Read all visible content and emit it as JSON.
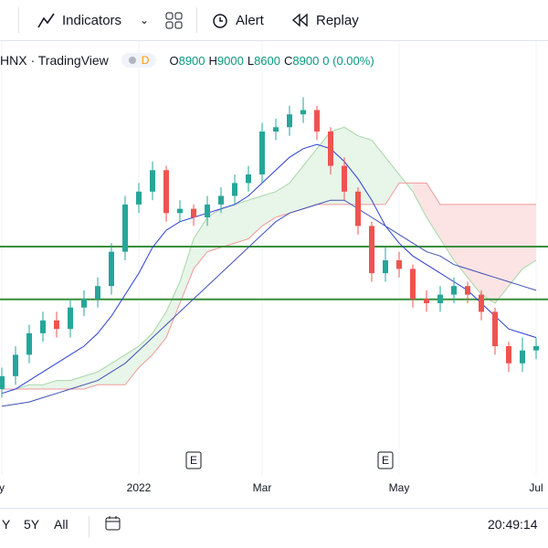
{
  "toolbar": {
    "indicators": "Indicators",
    "alert": "Alert",
    "replay": "Replay"
  },
  "legend": {
    "symbol": "HNX · TradingView",
    "interval": "D",
    "ohlc": [
      {
        "key": "O",
        "value": 8900
      },
      {
        "key": "H",
        "value": 9000
      },
      {
        "key": "L",
        "value": 8600
      },
      {
        "key": "C",
        "value": 8900
      }
    ],
    "change": "0 (0.00%)"
  },
  "bottom": {
    "ranges": [
      "Y",
      "5Y",
      "All"
    ],
    "time": "20:49:14"
  },
  "chart_data": {
    "type": "candlestick",
    "categories": [
      "y",
      null,
      null,
      null,
      null,
      null,
      null,
      null,
      null,
      null,
      "2022",
      null,
      null,
      null,
      null,
      null,
      null,
      null,
      null,
      "Mar",
      null,
      null,
      null,
      null,
      null,
      null,
      null,
      null,
      null,
      "May",
      null,
      null,
      null,
      null,
      null,
      null,
      null,
      null,
      null,
      "Jul"
    ],
    "event_labels": [
      null,
      null,
      null,
      null,
      null,
      null,
      null,
      null,
      null,
      null,
      null,
      null,
      null,
      null,
      "E",
      null,
      null,
      null,
      null,
      null,
      null,
      null,
      null,
      null,
      null,
      null,
      null,
      null,
      "E",
      null,
      null,
      null,
      null,
      null,
      null,
      null,
      null,
      null,
      null,
      null
    ],
    "open": [
      20,
      23,
      28,
      33,
      36,
      34,
      39,
      41,
      44,
      52,
      63,
      66,
      71,
      61,
      62,
      60,
      63,
      65,
      68,
      70,
      80,
      81,
      84,
      85,
      80,
      72,
      66,
      58,
      47,
      50,
      48,
      41,
      40,
      42,
      44,
      42,
      38,
      30,
      26,
      29
    ],
    "high": [
      25,
      30,
      35,
      38,
      38,
      41,
      43,
      46,
      54,
      65,
      68,
      73,
      72,
      64,
      63,
      65,
      67,
      70,
      72,
      82,
      83,
      86,
      88,
      86,
      81,
      74,
      67,
      59,
      53,
      52,
      49,
      43,
      44,
      46,
      45,
      43,
      39,
      31,
      32,
      32
    ],
    "low": [
      18,
      21,
      26,
      31,
      32,
      32,
      37,
      39,
      42,
      50,
      61,
      64,
      59,
      59,
      58,
      58,
      61,
      63,
      66,
      68,
      78,
      79,
      82,
      78,
      70,
      64,
      56,
      45,
      45,
      46,
      39,
      38,
      38,
      40,
      40,
      36,
      28,
      24,
      24,
      27
    ],
    "close": [
      23,
      28,
      33,
      36,
      34,
      39,
      41,
      44,
      52,
      63,
      66,
      71,
      61,
      62,
      60,
      63,
      65,
      68,
      70,
      80,
      81,
      84,
      85,
      80,
      72,
      66,
      58,
      47,
      50,
      48,
      41,
      40,
      42,
      44,
      42,
      38,
      30,
      26,
      29,
      30
    ],
    "up_color": "#26a69a",
    "down_color": "#ef5350",
    "series": [
      {
        "color": "#2a3fd4",
        "values": [
          19,
          20,
          22,
          24,
          26,
          28,
          30,
          33,
          37,
          42,
          47,
          53,
          57,
          59,
          60,
          61,
          62,
          63,
          65,
          68,
          71,
          74,
          76,
          77,
          76,
          73,
          69,
          64,
          58,
          54,
          51,
          49,
          47,
          45,
          43,
          40,
          37,
          34,
          33,
          32
        ]
      },
      {
        "color": "#3f51b5",
        "values": [
          16,
          16.5,
          17,
          18,
          19,
          20,
          21,
          22,
          24,
          26,
          29,
          32,
          35,
          38,
          41,
          44,
          47,
          50,
          53,
          56,
          59,
          61,
          62,
          63,
          64,
          64,
          62,
          60,
          58,
          56,
          54,
          52,
          51,
          49,
          48,
          47,
          46,
          45,
          44,
          43
        ]
      }
    ],
    "cloud": {
      "span_a": [
        20,
        20,
        21,
        21,
        22,
        22,
        23,
        24,
        26,
        28,
        30,
        33,
        38,
        45,
        55,
        60,
        62,
        63,
        64,
        65,
        66,
        68,
        72,
        76,
        80,
        81,
        79,
        78,
        74,
        70,
        66,
        60,
        55,
        50,
        46,
        42,
        40,
        44,
        48,
        50
      ],
      "span_b": [
        20,
        20,
        20,
        20,
        20,
        20,
        20,
        21,
        21,
        21,
        25,
        28,
        32,
        40,
        48,
        52,
        53,
        54,
        55,
        58,
        60,
        61,
        62,
        63,
        63,
        63,
        63,
        63,
        63,
        68,
        68,
        68,
        63,
        63,
        63,
        63,
        63,
        63,
        63,
        63
      ],
      "span_a_color": "#a5d6a7",
      "span_b_color": "#ef9a9a",
      "bull_fill": "#e8f5e9",
      "bear_fill": "#fde4e4"
    },
    "hlines": [
      53.2,
      40.9
    ],
    "hline_color": "#388e3c",
    "ylim": [
      0,
      100
    ]
  }
}
